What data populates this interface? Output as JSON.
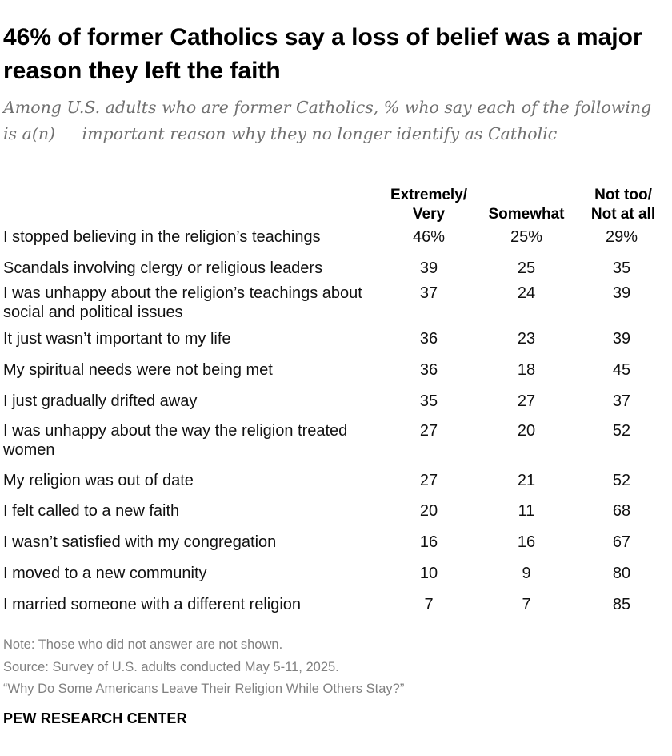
{
  "title": "46% of former Catholics say a loss of belief was a major reason they left the faith",
  "subtitle": "Among U.S. adults who are former Catholics, % who say each of the following is a(n) __ important reason why they no longer identify as Catholic",
  "chart_data": {
    "type": "table",
    "columns": [
      {
        "line1": "Extremely/",
        "line2": "Very"
      },
      {
        "line1": "",
        "line2": "Somewhat"
      },
      {
        "line1": "Not too/",
        "line2": "Not at all"
      }
    ],
    "rows": [
      {
        "label": "I stopped believing in the religion’s teachings",
        "values": [
          "46%",
          "25%",
          "29%"
        ]
      },
      {
        "label": "Scandals involving clergy or religious leaders",
        "values": [
          "39",
          "25",
          "35"
        ]
      },
      {
        "label": "I was unhappy about the religion’s teachings about social and political issues",
        "values": [
          "37",
          "24",
          "39"
        ]
      },
      {
        "label": "It just wasn’t important to my life",
        "values": [
          "36",
          "23",
          "39"
        ]
      },
      {
        "label": "My spiritual needs were not being met",
        "values": [
          "36",
          "18",
          "45"
        ]
      },
      {
        "label": "I just gradually drifted away",
        "values": [
          "35",
          "27",
          "37"
        ]
      },
      {
        "label": "I was unhappy about the way the religion treated women",
        "values": [
          "27",
          "20",
          "52"
        ]
      },
      {
        "label": "My religion was out of date",
        "values": [
          "27",
          "21",
          "52"
        ]
      },
      {
        "label": "I felt called to a new faith",
        "values": [
          "20",
          "11",
          "68"
        ]
      },
      {
        "label": "I wasn’t satisfied with my congregation",
        "values": [
          "16",
          "16",
          "67"
        ]
      },
      {
        "label": "I moved to a new community",
        "values": [
          "10",
          "9",
          "80"
        ]
      },
      {
        "label": "I married someone with a different religion",
        "values": [
          "7",
          "7",
          "85"
        ]
      }
    ]
  },
  "notes": {
    "note": "Note: Those who did not answer are not shown.",
    "source": "Source: Survey of U.S. adults conducted May 5-11, 2025.",
    "report": "“Why Do Some Americans Leave Their Religion While Others Stay?”"
  },
  "brand": "PEW RESEARCH CENTER"
}
